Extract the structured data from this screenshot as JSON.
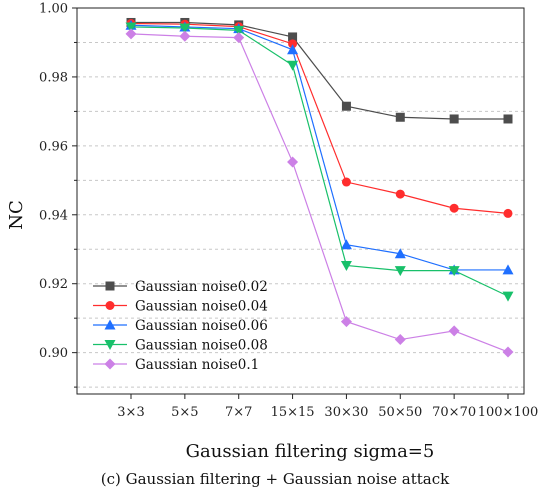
{
  "chart_data": {
    "type": "line",
    "title": "",
    "xlabel": "Gaussian filtering sigma=5",
    "ylabel": "NC",
    "categories": [
      "3×3",
      "5×5",
      "7×7",
      "15×15",
      "30×30",
      "50×50",
      "70×70",
      "100×100"
    ],
    "ylim": [
      0.888,
      1.0
    ],
    "yticks": [
      "0.90",
      "0.92",
      "0.94",
      "0.96",
      "0.98",
      "1.00"
    ],
    "grid": "horizontal dashed",
    "legend_position": "bottom-left",
    "series": [
      {
        "name": "Gaussian noise0.02",
        "color": "#4d4d4d",
        "marker": "square",
        "values": [
          0.9958,
          0.9958,
          0.9951,
          0.9916,
          0.9715,
          0.9683,
          0.9678,
          0.9678
        ]
      },
      {
        "name": "Gaussian noise0.04",
        "color": "#ff2d2d",
        "marker": "circle",
        "values": [
          0.9955,
          0.9953,
          0.9946,
          0.9896,
          0.9495,
          0.946,
          0.9419,
          0.9404
        ]
      },
      {
        "name": "Gaussian noise0.06",
        "color": "#1f6fff",
        "marker": "triangle-up",
        "values": [
          0.995,
          0.9945,
          0.994,
          0.9879,
          0.9313,
          0.9287,
          0.924,
          0.924
        ]
      },
      {
        "name": "Gaussian noise0.08",
        "color": "#18c06a",
        "marker": "triangle-down",
        "values": [
          0.9945,
          0.9942,
          0.9935,
          0.9834,
          0.9253,
          0.9238,
          0.9238,
          0.9164
        ]
      },
      {
        "name": "Gaussian noise0.1",
        "color": "#cc80e6",
        "marker": "diamond",
        "values": [
          0.9925,
          0.9918,
          0.9914,
          0.9553,
          0.909,
          0.9038,
          0.9063,
          0.9002
        ]
      }
    ]
  },
  "caption": "(c) Gaussian filtering + Gaussian noise attack"
}
